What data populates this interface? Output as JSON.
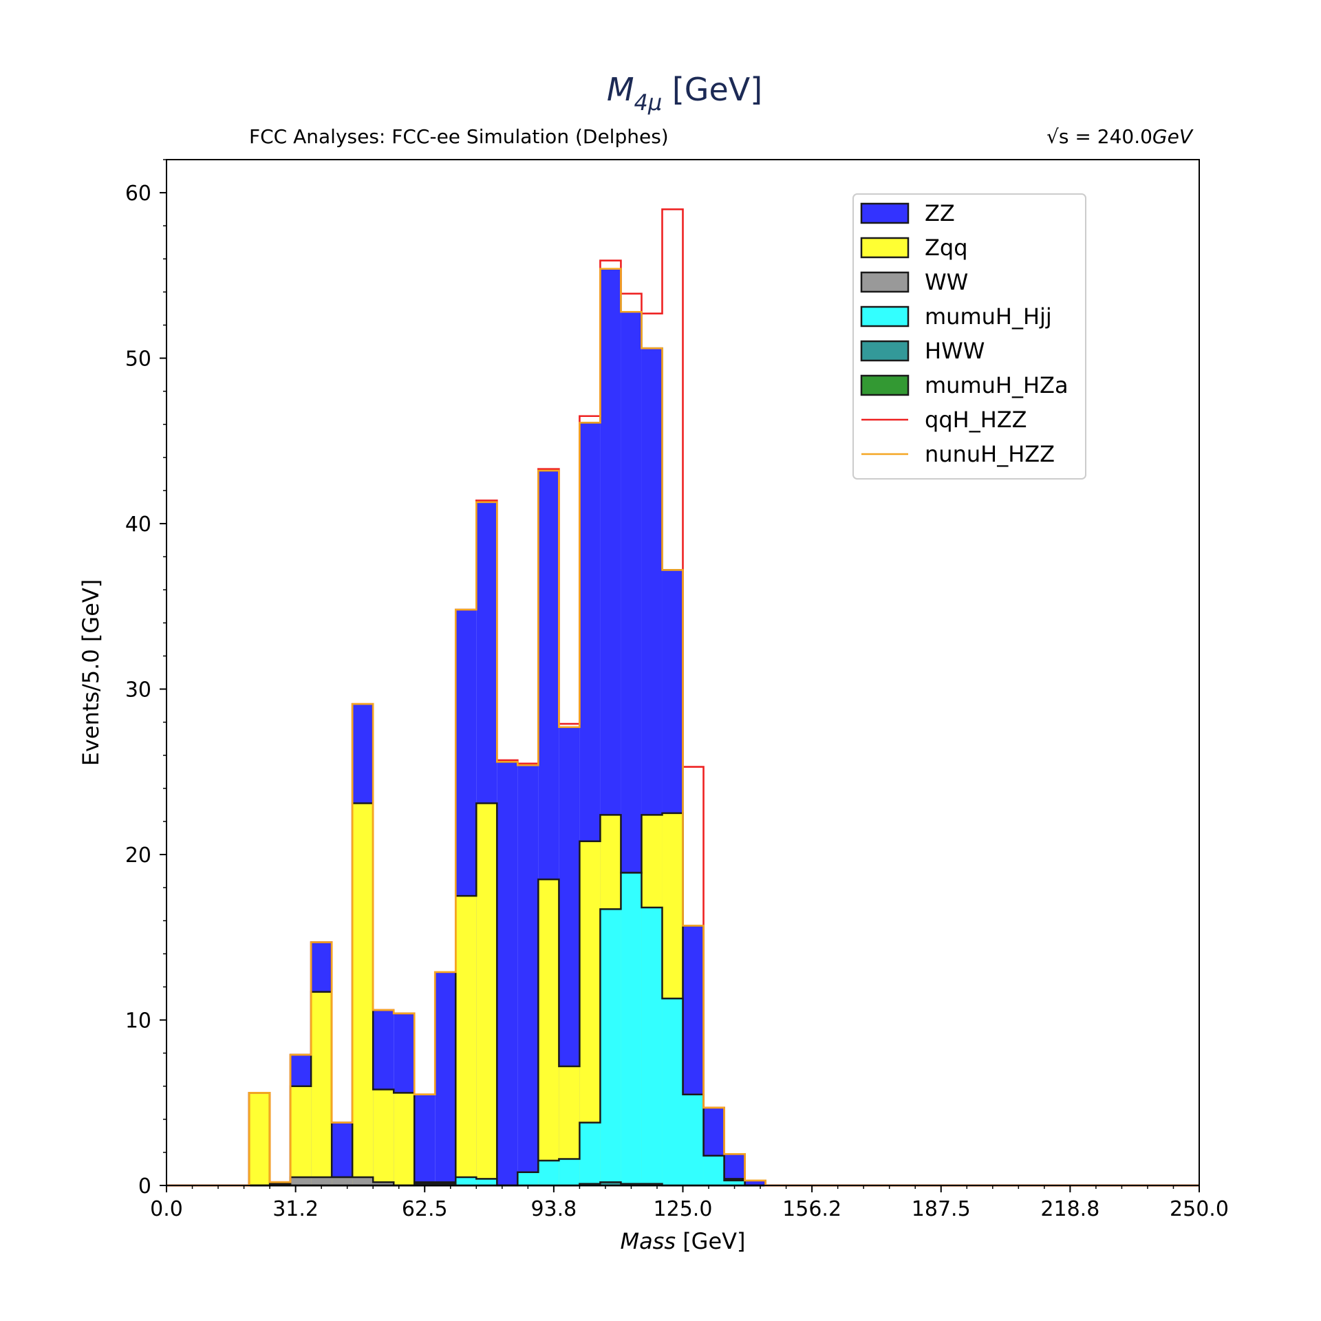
{
  "title": {
    "symbol": "M",
    "subscript": "4μ",
    "unit": " [GeV]"
  },
  "subtitle_left": "FCC Analyses: FCC-ee Simulation (Delphes)",
  "subtitle_right": {
    "prefix": "√s = ",
    "value": "240.0",
    "unit": "GeV"
  },
  "chart_data": {
    "type": "histogram-stacked",
    "title": "M_4μ [GeV]",
    "xlabel_italic": "Mass",
    "xlabel_unit": " [GeV]",
    "ylabel": "Events/5.0 [GeV]",
    "xlim": [
      0,
      250
    ],
    "ylim": [
      0,
      62
    ],
    "bin_width": 5,
    "xticks": [
      0.0,
      31.25,
      62.5,
      93.75,
      125.0,
      156.25,
      187.5,
      218.75,
      250.0
    ],
    "xtick_labels": [
      "0.0",
      "31.2",
      "62.5",
      "93.8",
      "125.0",
      "156.2",
      "187.5",
      "218.8",
      "250.0"
    ],
    "yticks": [
      0,
      10,
      20,
      30,
      40,
      50,
      60
    ],
    "ytick_labels": [
      "0",
      "10",
      "20",
      "30",
      "40",
      "50",
      "60"
    ],
    "legend_position": "top-right",
    "bin_edges": [
      0,
      5,
      10,
      15,
      20,
      25,
      30,
      35,
      40,
      45,
      50,
      55,
      60,
      65,
      70,
      75,
      80,
      85,
      90,
      95,
      100,
      105,
      110,
      115,
      120,
      125,
      130,
      135,
      140,
      145,
      150,
      155,
      160,
      165,
      170,
      175,
      180,
      185,
      190,
      195,
      200,
      205,
      210,
      215,
      220,
      225,
      230,
      235,
      240,
      245,
      250
    ],
    "series": [
      {
        "name": "ZZ",
        "style": "fill",
        "color": "#3333ff",
        "cumulative": [
          0,
          0,
          0,
          0,
          5.6,
          0.2,
          7.9,
          14.7,
          3.8,
          29.1,
          10.6,
          10.4,
          5.5,
          12.9,
          34.8,
          41.3,
          25.6,
          25.4,
          43.2,
          27.7,
          46.1,
          55.4,
          52.8,
          50.6,
          37.2,
          15.7,
          4.7,
          1.9,
          0.3,
          0,
          0,
          0,
          0,
          0,
          0,
          0,
          0,
          0,
          0,
          0,
          0,
          0,
          0,
          0,
          0,
          0,
          0,
          0,
          0,
          0
        ]
      },
      {
        "name": "Zqq",
        "style": "fill",
        "color": "#ffff33",
        "cumulative": [
          0,
          0,
          0,
          0,
          5.6,
          0.2,
          6.0,
          11.7,
          0.5,
          23.1,
          5.8,
          5.6,
          0.2,
          0.2,
          17.5,
          23.1,
          0,
          0.8,
          18.5,
          7.2,
          20.8,
          22.4,
          18.9,
          22.4,
          22.5,
          5.5,
          1.8,
          0.4,
          0,
          0,
          0,
          0,
          0,
          0,
          0,
          0,
          0,
          0,
          0,
          0,
          0,
          0,
          0,
          0,
          0,
          0,
          0,
          0,
          0,
          0
        ]
      },
      {
        "name": "WW",
        "style": "fill",
        "color": "#999999",
        "cumulative": [
          0,
          0,
          0,
          0,
          0,
          0.1,
          0.5,
          0.5,
          0.5,
          0.5,
          0.2,
          0,
          0,
          0,
          0,
          0,
          0,
          0,
          0,
          0,
          0,
          0,
          0,
          0,
          0,
          0,
          0,
          0,
          0,
          0,
          0,
          0,
          0,
          0,
          0,
          0,
          0,
          0,
          0,
          0,
          0,
          0,
          0,
          0,
          0,
          0,
          0,
          0,
          0,
          0
        ]
      },
      {
        "name": "mumuH_Hjj",
        "style": "fill",
        "color": "#33ffff",
        "cumulative": [
          0,
          0,
          0,
          0,
          0,
          0,
          0,
          0,
          0,
          0,
          0,
          0,
          0.1,
          0.1,
          0.5,
          0.4,
          0,
          0.8,
          1.5,
          1.6,
          3.8,
          16.7,
          18.9,
          16.8,
          11.3,
          5.5,
          1.8,
          0.3,
          0,
          0,
          0,
          0,
          0,
          0,
          0,
          0,
          0,
          0,
          0,
          0,
          0,
          0,
          0,
          0,
          0,
          0,
          0,
          0,
          0,
          0
        ]
      },
      {
        "name": "HWW",
        "style": "fill",
        "color": "#339999",
        "cumulative": [
          0,
          0,
          0,
          0,
          0,
          0,
          0,
          0,
          0,
          0,
          0,
          0,
          0,
          0,
          0,
          0,
          0,
          0,
          0,
          0,
          0.1,
          0.2,
          0.1,
          0.1,
          0,
          0,
          0,
          0,
          0,
          0,
          0,
          0,
          0,
          0,
          0,
          0,
          0,
          0,
          0,
          0,
          0,
          0,
          0,
          0,
          0,
          0,
          0,
          0,
          0,
          0
        ]
      },
      {
        "name": "mumuH_HZa",
        "style": "fill",
        "color": "#339933",
        "cumulative": [
          0,
          0,
          0,
          0,
          0,
          0,
          0,
          0,
          0,
          0,
          0,
          0,
          0,
          0,
          0,
          0,
          0,
          0,
          0,
          0,
          0,
          0,
          0,
          0,
          0,
          0,
          0,
          0,
          0,
          0,
          0,
          0,
          0,
          0,
          0,
          0,
          0,
          0,
          0,
          0,
          0,
          0,
          0,
          0,
          0,
          0,
          0,
          0,
          0,
          0
        ]
      },
      {
        "name": "qqH_HZZ",
        "style": "step",
        "color": "#ee2222",
        "cumulative": [
          0,
          0,
          0,
          0,
          5.6,
          0.2,
          7.9,
          14.7,
          3.8,
          29.1,
          10.6,
          10.4,
          5.5,
          12.9,
          34.8,
          41.4,
          25.7,
          25.5,
          43.3,
          27.9,
          46.5,
          55.9,
          53.9,
          52.7,
          59.0,
          25.3,
          4.7,
          1.9,
          0.3,
          0,
          0,
          0,
          0,
          0,
          0,
          0,
          0,
          0,
          0,
          0,
          0,
          0,
          0,
          0,
          0,
          0,
          0,
          0,
          0,
          0
        ]
      },
      {
        "name": "nunuH_HZZ",
        "style": "step",
        "color": "#f5a623",
        "cumulative": [
          0,
          0,
          0,
          0,
          5.6,
          0.2,
          7.9,
          14.7,
          3.8,
          29.1,
          10.6,
          10.4,
          5.5,
          12.9,
          34.8,
          41.3,
          25.6,
          25.4,
          43.2,
          27.7,
          46.1,
          55.4,
          52.8,
          50.6,
          37.2,
          15.7,
          4.7,
          1.9,
          0.3,
          0,
          0,
          0,
          0,
          0,
          0,
          0,
          0,
          0,
          0,
          0,
          0,
          0,
          0,
          0,
          0,
          0,
          0,
          0,
          0,
          0
        ]
      }
    ]
  }
}
